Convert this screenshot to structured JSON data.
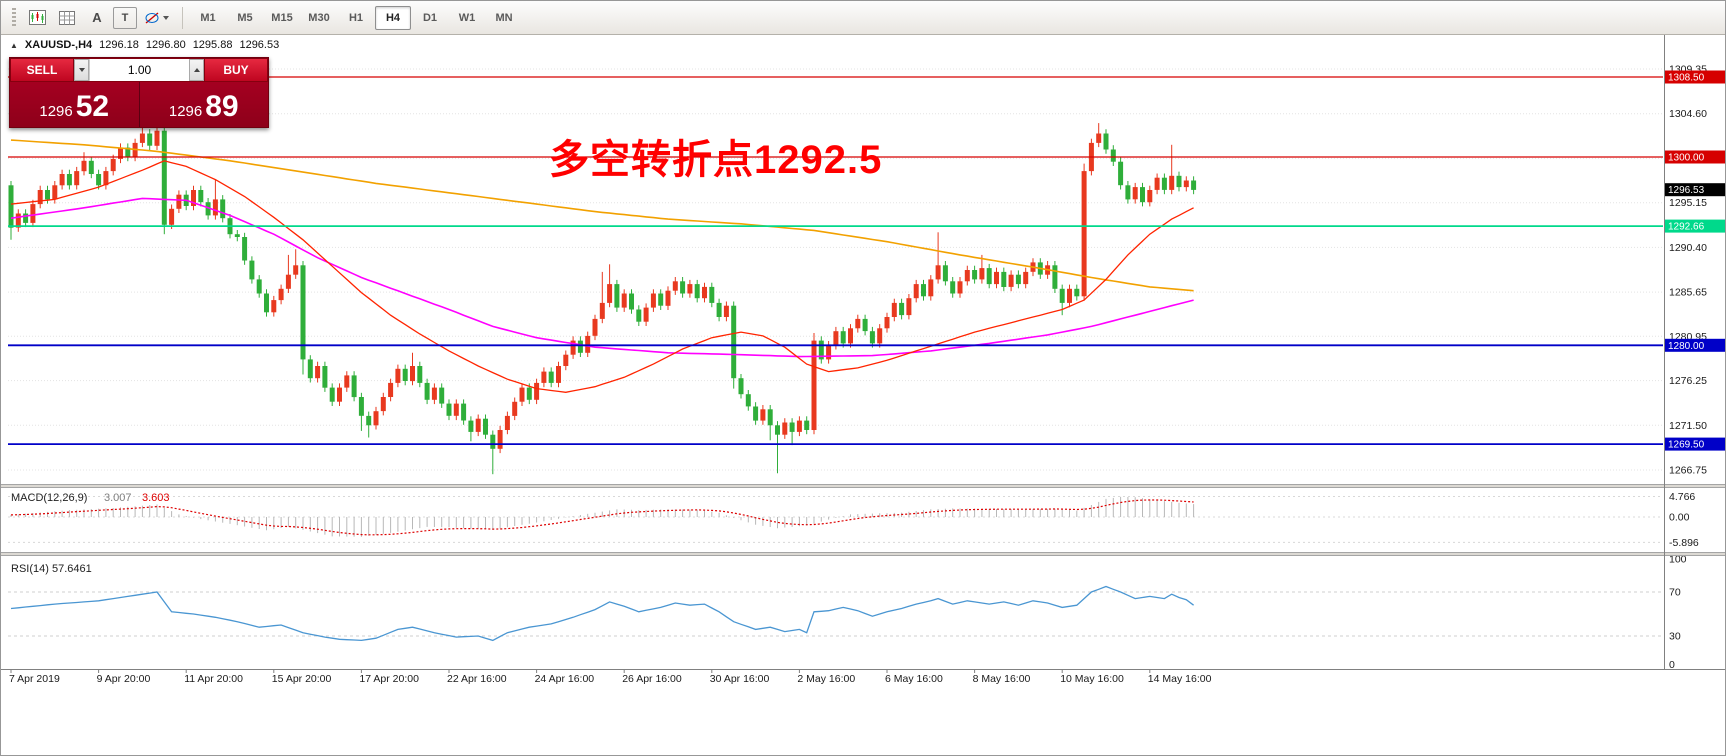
{
  "toolbar": {
    "icons": [
      {
        "name": "chart-window-icon",
        "glyph": ""
      },
      {
        "name": "grid-icon",
        "glyph": ""
      },
      {
        "name": "text-label-icon",
        "glyph": "A"
      },
      {
        "name": "text-box-icon",
        "glyph": "T"
      },
      {
        "name": "shapes-dropdown-icon",
        "glyph": ""
      }
    ],
    "timeframes": [
      {
        "label": "M1",
        "active": false
      },
      {
        "label": "M5",
        "active": false
      },
      {
        "label": "M15",
        "active": false
      },
      {
        "label": "M30",
        "active": false
      },
      {
        "label": "H1",
        "active": false
      },
      {
        "label": "H4",
        "active": true
      },
      {
        "label": "D1",
        "active": false
      },
      {
        "label": "W1",
        "active": false
      },
      {
        "label": "MN",
        "active": false
      }
    ]
  },
  "symbol_bar": {
    "collapse_glyph": "▲",
    "symbol": "XAUUSD-,H4",
    "open": "1296.18",
    "high": "1296.80",
    "low": "1295.88",
    "close": "1296.53"
  },
  "trade_panel": {
    "sell_label": "SELL",
    "buy_label": "BUY",
    "volume": "1.00",
    "sell_price_main": "1296",
    "sell_price_big": "52",
    "buy_price_main": "1296",
    "buy_price_big": "89"
  },
  "annotation": {
    "text": "多空转折点1292.5",
    "color": "#ff0000"
  },
  "chart_data": {
    "type": "candlestick",
    "title": "XAUUSD- H4",
    "colors": {
      "up": "#e8391f",
      "down": "#2fae3a",
      "grid": "#e3e3e3",
      "axis_text": "#1a1a1a",
      "ma_slow": "#f2a100",
      "ma_mid": "#ff00ff",
      "ma_fast": "#ff2400",
      "macd_hist": "#b8b8b8",
      "macd_signal": "#dd0000",
      "rsi": "#4a96d2",
      "level_red": "#d60000",
      "level_green": "#00d98b",
      "level_blue": "#0000c8",
      "current_tag": "#000000"
    },
    "ylim": [
      1266.75,
      1309.35
    ],
    "x0": 10,
    "dx": 7.3,
    "candle_width": 5,
    "open_first": 1297.0,
    "closes": [
      1292.5,
      1294.0,
      1293.0,
      1295.0,
      1296.5,
      1295.5,
      1297.0,
      1298.2,
      1297.0,
      1298.5,
      1299.6,
      1298.2,
      1297.0,
      1298.5,
      1299.8,
      1301.0,
      1300.0,
      1301.5,
      1302.5,
      1301.2,
      1302.8,
      1292.8,
      1294.5,
      1296.0,
      1294.8,
      1296.5,
      1295.2,
      1293.8,
      1295.5,
      1293.5,
      1291.8,
      1291.5,
      1289.0,
      1287.0,
      1285.5,
      1283.5,
      1284.8,
      1286.0,
      1287.5,
      1288.5,
      1278.5,
      1276.5,
      1277.8,
      1275.5,
      1274.0,
      1275.5,
      1276.8,
      1274.5,
      1272.5,
      1271.5,
      1273.0,
      1274.5,
      1276.0,
      1277.5,
      1276.2,
      1277.8,
      1276.0,
      1274.2,
      1275.5,
      1273.8,
      1272.5,
      1273.8,
      1272.0,
      1270.8,
      1272.2,
      1270.5,
      1269.0,
      1271.0,
      1272.5,
      1274.0,
      1275.5,
      1274.2,
      1276.0,
      1277.2,
      1276.0,
      1277.8,
      1279.0,
      1280.5,
      1279.2,
      1281.0,
      1282.8,
      1284.5,
      1286.5,
      1284.0,
      1285.5,
      1283.8,
      1282.5,
      1284.0,
      1285.5,
      1284.2,
      1285.8,
      1286.8,
      1285.5,
      1286.5,
      1285.0,
      1286.2,
      1284.5,
      1283.0,
      1284.2,
      1276.5,
      1274.8,
      1273.5,
      1272.0,
      1273.2,
      1271.5,
      1270.5,
      1271.8,
      1270.8,
      1272.0,
      1271.0,
      1280.5,
      1278.5,
      1280.0,
      1281.5,
      1280.2,
      1281.8,
      1282.8,
      1281.5,
      1280.2,
      1281.8,
      1283.0,
      1284.5,
      1283.2,
      1285.0,
      1286.5,
      1285.2,
      1287.0,
      1288.5,
      1286.8,
      1285.5,
      1286.8,
      1288.0,
      1287.0,
      1288.2,
      1286.5,
      1287.8,
      1286.2,
      1287.5,
      1286.5,
      1287.8,
      1288.8,
      1287.5,
      1288.5,
      1286.0,
      1284.5,
      1286.0,
      1285.2,
      1298.5,
      1301.5,
      1302.5,
      1300.8,
      1299.5,
      1297.0,
      1295.5,
      1296.8,
      1295.2,
      1296.5,
      1297.8,
      1296.5,
      1298.0,
      1296.8,
      1297.5,
      1296.5
    ],
    "wick_overrides": {
      "0": {
        "l": 1291.2
      },
      "10": {
        "h": 1300.5
      },
      "18": {
        "h": 1303.3
      },
      "20": {
        "h": 1303.8
      },
      "21": {
        "l": 1291.8
      },
      "28": {
        "h": 1297.6
      },
      "38": {
        "h": 1289.6
      },
      "39": {
        "h": 1290.2
      },
      "40": {
        "l": 1276.9
      },
      "48": {
        "l": 1270.9
      },
      "49": {
        "l": 1270.2
      },
      "55": {
        "h": 1279.2
      },
      "63": {
        "l": 1269.8
      },
      "66": {
        "l": 1266.3
      },
      "81": {
        "h": 1287.8
      },
      "82": {
        "h": 1288.6
      },
      "99": {
        "l": 1275.4
      },
      "104": {
        "l": 1269.9
      },
      "105": {
        "l": 1266.4
      },
      "107": {
        "l": 1269.4
      },
      "110": {
        "h": 1281.3
      },
      "127": {
        "h": 1292.0
      },
      "133": {
        "h": 1289.6
      },
      "144": {
        "l": 1283.2
      },
      "147": {
        "h": 1299.3
      },
      "149": {
        "h": 1303.6
      },
      "159": {
        "h": 1301.3
      }
    },
    "levels": [
      {
        "price": 1308.5,
        "label": "1308.50",
        "color": "#d60000",
        "width": 1.3
      },
      {
        "price": 1300.0,
        "label": "1300.00",
        "color": "#d60000",
        "width": 1.3
      },
      {
        "price": 1292.66,
        "label": "1292.66",
        "color": "#00d98b",
        "width": 1.8
      },
      {
        "price": 1280.0,
        "label": "1280.00",
        "color": "#0000c8",
        "width": 1.8
      },
      {
        "price": 1269.5,
        "label": "1269.50",
        "color": "#0000c8",
        "width": 1.8
      }
    ],
    "current": {
      "price": 1296.53,
      "label": "1296.53"
    },
    "price_labels": [
      [
        "1309.35",
        1309.35
      ],
      [
        "1304.60",
        1304.6
      ],
      [
        "1295.15",
        1295.15
      ],
      [
        "1290.40",
        1290.4
      ],
      [
        "1285.65",
        1285.65
      ],
      [
        "1280.95",
        1280.95
      ],
      [
        "1276.25",
        1276.25
      ],
      [
        "1271.50",
        1271.5
      ],
      [
        "1266.75",
        1266.75
      ]
    ],
    "grid_prices": [
      1309.35,
      1304.6,
      1299.85,
      1295.15,
      1290.4,
      1285.65,
      1280.95,
      1276.25,
      1271.5,
      1266.75
    ],
    "time_labels": [
      [
        0,
        "7 Apr 2019"
      ],
      [
        12,
        "9 Apr 20:00"
      ],
      [
        24,
        "11 Apr 20:00"
      ],
      [
        36,
        "15 Apr 20:00"
      ],
      [
        48,
        "17 Apr 20:00"
      ],
      [
        60,
        "22 Apr 16:00"
      ],
      [
        72,
        "24 Apr 16:00"
      ],
      [
        84,
        "26 Apr 16:00"
      ],
      [
        96,
        "30 Apr 16:00"
      ],
      [
        108,
        "2 May 16:00"
      ],
      [
        120,
        "6 May 16:00"
      ],
      [
        132,
        "8 May 16:00"
      ],
      [
        144,
        "10 May 16:00"
      ],
      [
        156,
        "14 May 16:00"
      ]
    ],
    "mas": [
      {
        "name": "ma-slow-orange",
        "points": [
          [
            0,
            1301.8
          ],
          [
            10,
            1301.3
          ],
          [
            20,
            1300.6
          ],
          [
            30,
            1299.6
          ],
          [
            40,
            1298.4
          ],
          [
            50,
            1297.2
          ],
          [
            60,
            1296.2
          ],
          [
            70,
            1295.2
          ],
          [
            80,
            1294.2
          ],
          [
            90,
            1293.4
          ],
          [
            100,
            1292.9
          ],
          [
            110,
            1292.2
          ],
          [
            120,
            1291.0
          ],
          [
            130,
            1289.6
          ],
          [
            140,
            1288.3
          ],
          [
            148,
            1287.2
          ],
          [
            156,
            1286.2
          ],
          [
            162,
            1285.8
          ]
        ]
      },
      {
        "name": "ma-mid-magenta",
        "points": [
          [
            0,
            1293.5
          ],
          [
            10,
            1294.6
          ],
          [
            18,
            1295.6
          ],
          [
            24,
            1295.4
          ],
          [
            30,
            1293.8
          ],
          [
            36,
            1291.8
          ],
          [
            42,
            1289.3
          ],
          [
            48,
            1287.2
          ],
          [
            54,
            1285.5
          ],
          [
            60,
            1283.8
          ],
          [
            66,
            1282.0
          ],
          [
            72,
            1280.8
          ],
          [
            80,
            1279.8
          ],
          [
            90,
            1279.2
          ],
          [
            100,
            1279.0
          ],
          [
            108,
            1278.8
          ],
          [
            118,
            1278.9
          ],
          [
            126,
            1279.4
          ],
          [
            134,
            1280.2
          ],
          [
            142,
            1281.1
          ],
          [
            148,
            1282.0
          ],
          [
            154,
            1283.2
          ],
          [
            162,
            1284.8
          ]
        ]
      },
      {
        "name": "ma-fast-red",
        "points": [
          [
            0,
            1295.0
          ],
          [
            6,
            1295.5
          ],
          [
            12,
            1296.8
          ],
          [
            18,
            1298.6
          ],
          [
            21,
            1299.6
          ],
          [
            24,
            1299.0
          ],
          [
            28,
            1297.6
          ],
          [
            32,
            1295.8
          ],
          [
            36,
            1293.6
          ],
          [
            40,
            1291.2
          ],
          [
            44,
            1288.4
          ],
          [
            48,
            1285.6
          ],
          [
            52,
            1283.2
          ],
          [
            56,
            1281.2
          ],
          [
            60,
            1279.4
          ],
          [
            64,
            1277.8
          ],
          [
            68,
            1276.4
          ],
          [
            72,
            1275.4
          ],
          [
            76,
            1275.0
          ],
          [
            80,
            1275.6
          ],
          [
            84,
            1276.6
          ],
          [
            88,
            1278.0
          ],
          [
            92,
            1279.6
          ],
          [
            96,
            1280.8
          ],
          [
            100,
            1281.4
          ],
          [
            103,
            1281.0
          ],
          [
            106,
            1279.8
          ],
          [
            109,
            1278.0
          ],
          [
            112,
            1277.2
          ],
          [
            116,
            1277.6
          ],
          [
            120,
            1278.4
          ],
          [
            124,
            1279.4
          ],
          [
            128,
            1280.4
          ],
          [
            132,
            1281.4
          ],
          [
            136,
            1282.2
          ],
          [
            140,
            1283.0
          ],
          [
            144,
            1283.8
          ],
          [
            147,
            1284.8
          ],
          [
            150,
            1287.0
          ],
          [
            153,
            1289.6
          ],
          [
            156,
            1291.8
          ],
          [
            159,
            1293.4
          ],
          [
            162,
            1294.6
          ]
        ]
      }
    ],
    "macd": {
      "title": "MACD(12,26,9)",
      "value_main": "3.007",
      "value_signal": "3.603",
      "ylim": [
        -7.67,
        6.74
      ],
      "axis_labels": [
        [
          "4.766",
          4.766
        ],
        [
          "0.00",
          0
        ],
        [
          "-5.896",
          -5.896
        ]
      ],
      "keypoints": [
        [
          0,
          0.5
        ],
        [
          8,
          1.6
        ],
        [
          14,
          2.1
        ],
        [
          20,
          2.9
        ],
        [
          23,
          0.6
        ],
        [
          26,
          -0.5
        ],
        [
          30,
          -1.6
        ],
        [
          35,
          -3.1
        ],
        [
          38,
          -2.3
        ],
        [
          40,
          -3.0
        ],
        [
          44,
          -4.5
        ],
        [
          48,
          -4.6
        ],
        [
          52,
          -3.7
        ],
        [
          57,
          -2.3
        ],
        [
          60,
          -2.4
        ],
        [
          63,
          -2.7
        ],
        [
          66,
          -3.0
        ],
        [
          69,
          -2.1
        ],
        [
          73,
          -1.0
        ],
        [
          77,
          0.2
        ],
        [
          80,
          1.0
        ],
        [
          83,
          1.8
        ],
        [
          86,
          1.6
        ],
        [
          90,
          1.8
        ],
        [
          94,
          1.7
        ],
        [
          97,
          1.0
        ],
        [
          99,
          -0.2
        ],
        [
          102,
          -1.8
        ],
        [
          105,
          -2.6
        ],
        [
          109,
          -2.0
        ],
        [
          112,
          -0.6
        ],
        [
          115,
          0.6
        ],
        [
          118,
          0.8
        ],
        [
          122,
          1.0
        ],
        [
          126,
          1.8
        ],
        [
          129,
          2.0
        ],
        [
          133,
          1.9
        ],
        [
          138,
          1.8
        ],
        [
          143,
          1.9
        ],
        [
          146,
          1.5
        ],
        [
          148,
          2.8
        ],
        [
          150,
          4.2
        ],
        [
          152,
          4.7
        ],
        [
          154,
          4.6
        ],
        [
          156,
          4.1
        ],
        [
          158,
          3.7
        ],
        [
          160,
          3.3
        ],
        [
          162,
          3.0
        ]
      ]
    },
    "rsi": {
      "title": "RSI(14)",
      "value": "57.6461",
      "ylim": [
        0,
        100
      ],
      "level_lines": [
        70,
        30
      ],
      "axis_labels": [
        [
          "100",
          100
        ],
        [
          "70",
          70
        ],
        [
          "30",
          30
        ],
        [
          "0",
          0
        ]
      ],
      "keypoints": [
        [
          0,
          55
        ],
        [
          6,
          59
        ],
        [
          12,
          62
        ],
        [
          17,
          67
        ],
        [
          20,
          70
        ],
        [
          22,
          52
        ],
        [
          25,
          50
        ],
        [
          28,
          47
        ],
        [
          31,
          43
        ],
        [
          34,
          38
        ],
        [
          37,
          40
        ],
        [
          40,
          33
        ],
        [
          43,
          29
        ],
        [
          45,
          27
        ],
        [
          48,
          26
        ],
        [
          50,
          28
        ],
        [
          53,
          36
        ],
        [
          55,
          38
        ],
        [
          58,
          33
        ],
        [
          61,
          29
        ],
        [
          64,
          30
        ],
        [
          66,
          26
        ],
        [
          68,
          33
        ],
        [
          71,
          38
        ],
        [
          74,
          41
        ],
        [
          77,
          47
        ],
        [
          80,
          54
        ],
        [
          82,
          61
        ],
        [
          84,
          57
        ],
        [
          86,
          52
        ],
        [
          89,
          56
        ],
        [
          91,
          60
        ],
        [
          93,
          58
        ],
        [
          95,
          59
        ],
        [
          97,
          52
        ],
        [
          99,
          43
        ],
        [
          102,
          36
        ],
        [
          104,
          38
        ],
        [
          106,
          34
        ],
        [
          108,
          36
        ],
        [
          109,
          33
        ],
        [
          110,
          52
        ],
        [
          112,
          53
        ],
        [
          114,
          56
        ],
        [
          116,
          53
        ],
        [
          118,
          48
        ],
        [
          120,
          52
        ],
        [
          122,
          55
        ],
        [
          124,
          59
        ],
        [
          126,
          62
        ],
        [
          127,
          64
        ],
        [
          129,
          59
        ],
        [
          131,
          62
        ],
        [
          134,
          59
        ],
        [
          136,
          61
        ],
        [
          138,
          58
        ],
        [
          140,
          62
        ],
        [
          142,
          60
        ],
        [
          144,
          56
        ],
        [
          146,
          58
        ],
        [
          148,
          70
        ],
        [
          150,
          75
        ],
        [
          152,
          70
        ],
        [
          154,
          64
        ],
        [
          156,
          66
        ],
        [
          158,
          64
        ],
        [
          159,
          68
        ],
        [
          160,
          65
        ],
        [
          161,
          63
        ],
        [
          162,
          58
        ]
      ]
    }
  }
}
